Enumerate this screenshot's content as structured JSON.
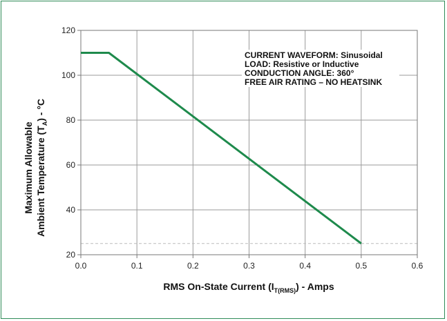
{
  "chart_data": {
    "type": "line",
    "x": [
      0.0,
      0.05,
      0.5
    ],
    "series": [
      {
        "values": [
          110,
          110,
          25
        ],
        "color": "#1e8a4c"
      }
    ],
    "xticks": [
      "0.0",
      "0.1",
      "0.2",
      "0.3",
      "0.4",
      "0.5",
      "0.6"
    ],
    "yticks": [
      "20",
      "40",
      "60",
      "80",
      "100",
      "120"
    ],
    "xlim": [
      0,
      0.6
    ],
    "ylim": [
      20,
      120
    ],
    "grid": true,
    "reference_line": {
      "y": 25,
      "style": "dashed",
      "color": "#bbbbbb"
    },
    "xlabel": {
      "main": "RMS On-State Current (I",
      "sub": "T(RMS)",
      "end": ") - Amps"
    },
    "ylabel": {
      "line1": "Maximum Allowable",
      "line2_main": "Ambient Temperature (T",
      "line2_sub": "A",
      "line2_end": ") - °C"
    },
    "annotations": [
      "CURRENT WAVEFORM: Sinusoidal",
      "LOAD: Resistive or Inductive",
      "CONDUCTION ANGLE: 360°",
      "FREE AIR RATING – NO HEATSINK"
    ]
  }
}
